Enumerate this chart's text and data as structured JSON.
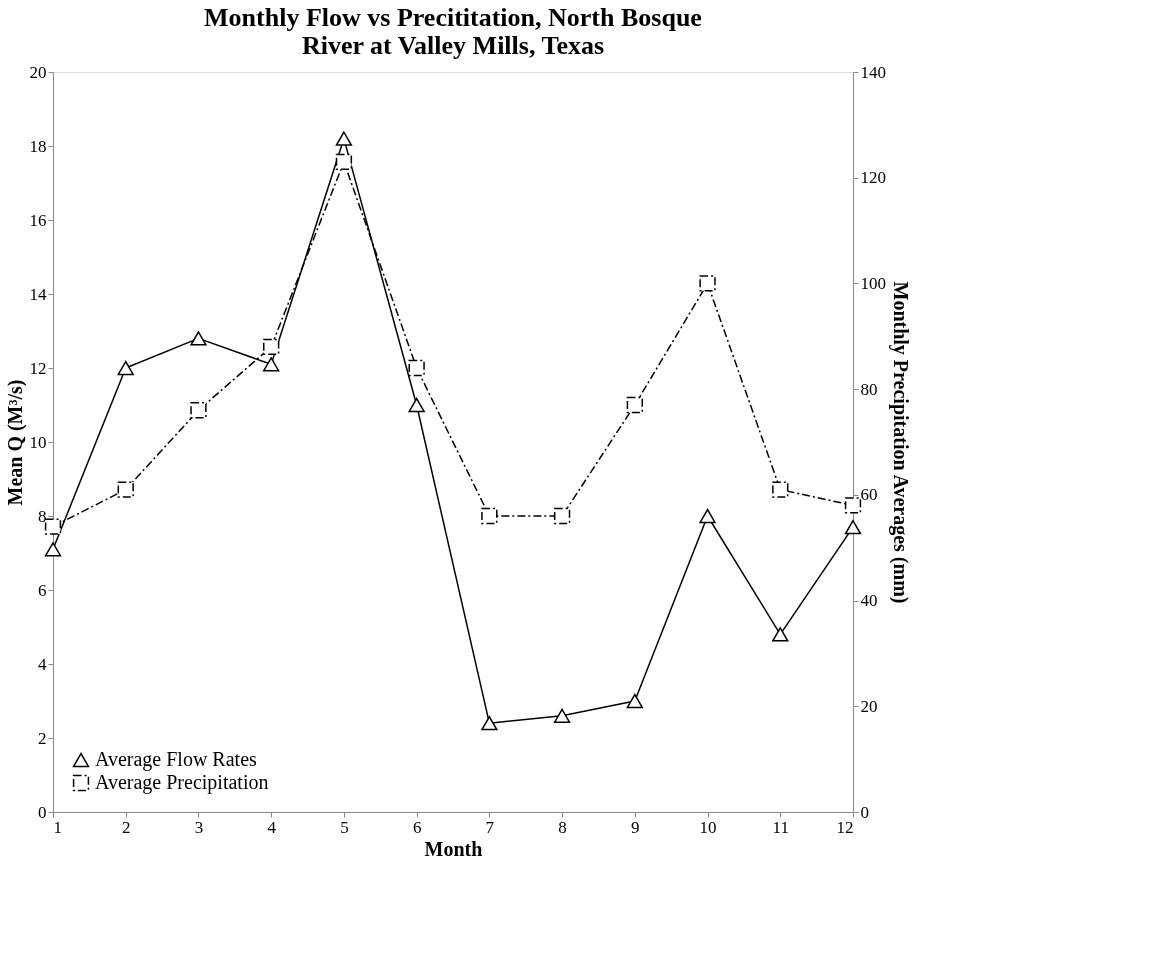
{
  "chart_data": {
    "type": "line",
    "title": "Monthly Flow vs Precititation, North Bosque\nRiver at Valley Mills, Texas",
    "xlabel": "Month",
    "ylabel": "Mean Q (M³/s)",
    "y2label": "Monthly Precipitation Averages (mm)",
    "x": [
      1,
      2,
      3,
      4,
      5,
      6,
      7,
      8,
      9,
      10,
      11,
      12
    ],
    "series": [
      {
        "name": "Average Flow Rates",
        "color": "#000000",
        "marker": "triangle",
        "line_style": "solid",
        "values": [
          7.1,
          12.0,
          12.8,
          12.1,
          18.2,
          11.0,
          2.4,
          2.6,
          3.0,
          8.0,
          4.8,
          7.7
        ]
      },
      {
        "name": "Average Precipitation",
        "color": "#000000",
        "marker": "square",
        "line_style": "dashed",
        "axis": "y2",
        "values": [
          54,
          61,
          76,
          88,
          123,
          84,
          56,
          56,
          77,
          100,
          61,
          58
        ]
      }
    ],
    "xlim": [
      1,
      12
    ],
    "xticks": [
      1,
      2,
      3,
      4,
      5,
      6,
      7,
      8,
      9,
      10,
      11,
      12
    ],
    "ylim": [
      0,
      20
    ],
    "yticks": [
      0,
      2,
      4,
      6,
      8,
      10,
      12,
      14,
      16,
      18,
      20
    ],
    "y2lim": [
      0,
      140
    ],
    "y2ticks": [
      0,
      20,
      40,
      60,
      80,
      100,
      120,
      140
    ],
    "grid": false,
    "legend": "bottom left"
  }
}
